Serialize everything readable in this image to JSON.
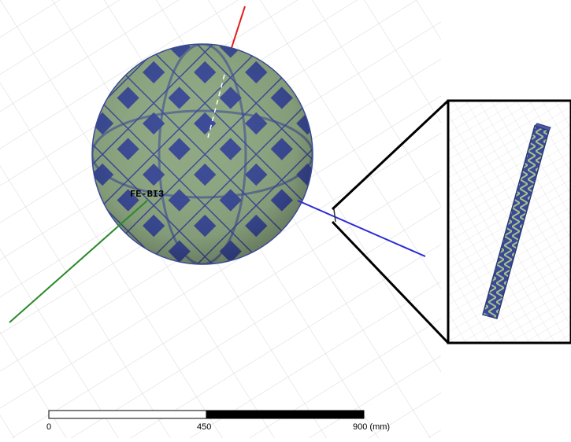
{
  "viewport": {
    "background": "#ffffff",
    "grid_color": "#d6d6d6"
  },
  "model": {
    "label": "FE-BI3",
    "sphere_base_color": "#8ea882",
    "sphere_pattern_color": "#3b4a96",
    "axes": {
      "x_color": "#2a2ad6",
      "y_color": "#2a8a2a",
      "z_color": "#e11a1a"
    }
  },
  "inset": {
    "element_base_color": "#8ea882",
    "element_pattern_color": "#3b4a96"
  },
  "scale_bar": {
    "labels": [
      "0",
      "450",
      "900 (mm)"
    ]
  }
}
